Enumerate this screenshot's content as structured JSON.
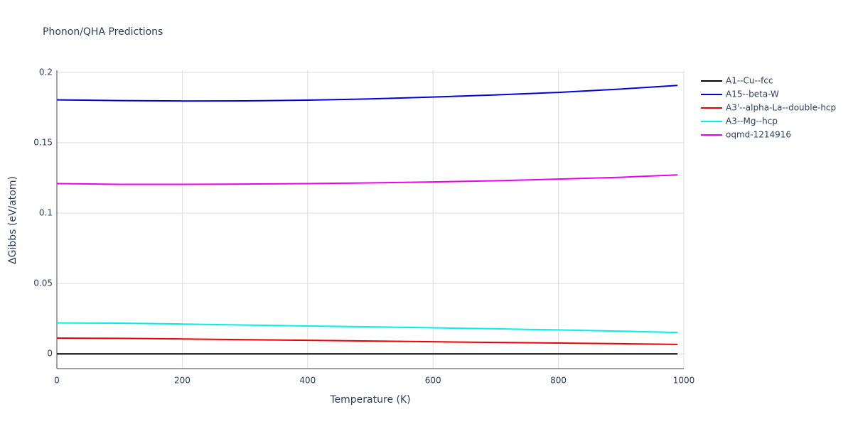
{
  "chart_data": {
    "type": "line",
    "title": "Phonon/QHA Predictions",
    "x_label": "Temperature (K)",
    "y_label": "ΔGibbs (eV/atom)",
    "x": [
      0,
      100,
      200,
      300,
      400,
      500,
      600,
      700,
      800,
      900,
      990
    ],
    "series": [
      {
        "name": "A1--Cu--fcc",
        "color": "#000000",
        "values": [
          0,
          0,
          0,
          0,
          0,
          0,
          0,
          0,
          0,
          0,
          0
        ]
      },
      {
        "name": "A15--beta-W",
        "color": "#0000dd",
        "values": [
          0.1805,
          0.18,
          0.1797,
          0.1798,
          0.1803,
          0.1812,
          0.1825,
          0.184,
          0.1858,
          0.1882,
          0.1908
        ]
      },
      {
        "name": "A3'--alpha-La--double-hcp",
        "color": "#ee0000",
        "values": [
          0.0112,
          0.011,
          0.0106,
          0.0101,
          0.0096,
          0.0091,
          0.0086,
          0.0081,
          0.0077,
          0.0072,
          0.0067
        ]
      },
      {
        "name": "A3--Mg--hcp",
        "color": "#00eeee",
        "values": [
          0.022,
          0.0218,
          0.0212,
          0.0205,
          0.0198,
          0.0192,
          0.0185,
          0.0178,
          0.017,
          0.0161,
          0.0152
        ]
      },
      {
        "name": "oqmd-1214916",
        "color": "#ee00ee",
        "values": [
          0.121,
          0.1205,
          0.1205,
          0.1207,
          0.121,
          0.1215,
          0.1222,
          0.123,
          0.1242,
          0.1255,
          0.1272
        ]
      }
    ],
    "xlim": [
      0,
      1000
    ],
    "xticks": [
      0,
      200,
      400,
      600,
      800,
      1000
    ],
    "ylim": [
      -0.0105,
      0.2015
    ],
    "yticks": [
      0,
      0.05,
      0.1,
      0.15,
      0.2
    ],
    "grid": true,
    "legend_position": "right"
  }
}
